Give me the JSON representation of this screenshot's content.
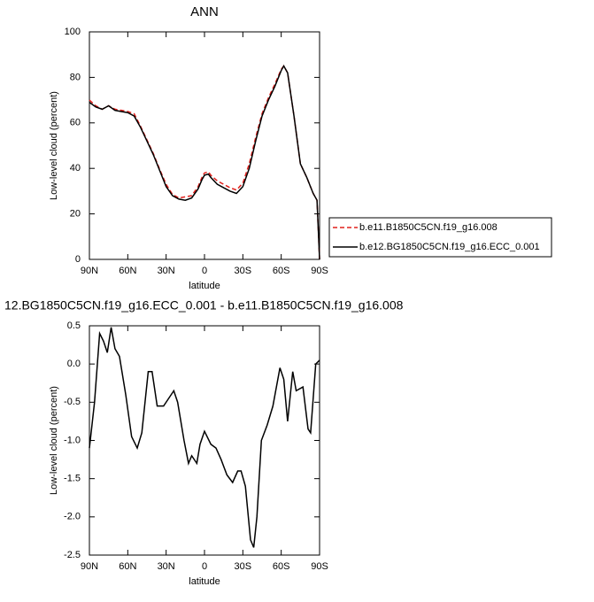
{
  "chart_data": [
    {
      "type": "line",
      "title": "ANN",
      "xlabel": "latitude",
      "ylabel": "Low-level cloud (percent)",
      "x": [
        90,
        85,
        80,
        75,
        70,
        65,
        60,
        55,
        50,
        45,
        40,
        35,
        30,
        25,
        20,
        15,
        10,
        5,
        2,
        0,
        -3,
        -5,
        -10,
        -15,
        -20,
        -25,
        -30,
        -35,
        -40,
        -45,
        -50,
        -55,
        -60,
        -62,
        -65,
        -70,
        -75,
        -80,
        -85,
        -88,
        -90
      ],
      "series": [
        {
          "name": "b.e11.B1850C5CN.f19_g16.008",
          "color": "#e0201c",
          "dashed": true,
          "values": [
            70,
            67.5,
            66,
            67.5,
            66,
            65.5,
            65,
            64,
            58.5,
            52.5,
            46.5,
            39.5,
            33,
            28.5,
            27,
            27.5,
            28,
            32,
            36,
            38,
            38.5,
            37,
            34.5,
            33,
            31.5,
            30.5,
            33.5,
            42,
            53.5,
            64,
            71,
            77,
            83.5,
            85,
            82,
            63,
            42,
            36,
            29,
            26,
            0
          ]
        },
        {
          "name": "b.e12.BG1850C5CN.f19_g16.ECC_0.001",
          "color": "#000000",
          "dashed": false,
          "values": [
            69,
            67,
            66,
            67.5,
            65.5,
            65,
            64.5,
            63,
            58,
            52,
            46,
            39,
            32,
            28,
            26.5,
            26,
            27,
            31,
            35,
            37,
            37.5,
            36,
            33,
            31.5,
            30,
            29,
            32,
            40,
            52,
            63,
            70,
            76,
            83,
            85,
            82,
            63,
            42,
            36,
            29,
            26,
            0
          ]
        }
      ],
      "xlim": [
        90,
        -90
      ],
      "xticks": [
        {
          "value": 90,
          "label": "90N"
        },
        {
          "value": 60,
          "label": "60N"
        },
        {
          "value": 30,
          "label": "30N"
        },
        0,
        {
          "value": -30,
          "label": "30S"
        },
        {
          "value": -60,
          "label": "60S"
        },
        {
          "value": -90,
          "label": "90S"
        }
      ],
      "ylim": [
        0,
        100
      ],
      "yticks": [
        0,
        20,
        40,
        60,
        80,
        100
      ],
      "legend": "right"
    },
    {
      "type": "line",
      "title": "12.BG1850C5CN.f19_g16.ECC_0.001 - b.e11.B1850C5CN.f19_g16.008",
      "xlabel": "latitude",
      "ylabel": "Low-level cloud (percent)",
      "x": [
        90,
        86,
        82,
        79,
        76,
        73,
        70,
        66.5,
        61.6,
        57,
        52.6,
        49,
        44,
        41,
        37,
        32,
        28,
        24,
        21,
        16,
        12.5,
        10,
        6,
        3.5,
        0,
        -5,
        -9,
        -13,
        -17.5,
        -22,
        -26,
        -28.6,
        -32,
        -36,
        -38.5,
        -41,
        -44.5,
        -49,
        -53.5,
        -59,
        -62,
        -65,
        -69,
        -71.7,
        -77,
        -81,
        -83,
        -87,
        -90
      ],
      "series": [
        {
          "color": "#000000",
          "dashed": false,
          "values": [
            -1.1,
            -0.5,
            0.4,
            0.3,
            0.15,
            0.48,
            0.2,
            0.1,
            -0.4,
            -0.95,
            -1.1,
            -0.9,
            -0.1,
            -0.1,
            -0.55,
            -0.55,
            -0.45,
            -0.35,
            -0.5,
            -1.0,
            -1.3,
            -1.2,
            -1.3,
            -1.05,
            -0.88,
            -1.05,
            -1.1,
            -1.25,
            -1.45,
            -1.55,
            -1.4,
            -1.4,
            -1.6,
            -2.3,
            -2.4,
            -2.0,
            -1.0,
            -0.8,
            -0.55,
            -0.05,
            -0.2,
            -0.75,
            -0.1,
            -0.35,
            -0.3,
            -0.85,
            -0.9,
            0.0,
            0.05
          ]
        }
      ],
      "xlim": [
        90,
        -90
      ],
      "xticks": [
        {
          "value": 90,
          "label": "90N"
        },
        {
          "value": 60,
          "label": "60N"
        },
        {
          "value": 30,
          "label": "30N"
        },
        0,
        {
          "value": -30,
          "label": "30S"
        },
        {
          "value": -60,
          "label": "60S"
        },
        {
          "value": -90,
          "label": "90S"
        }
      ],
      "ylim": [
        -2.5,
        0.5
      ],
      "yticks": [
        -2.5,
        {
          "value": -2.0,
          "label": "-2.0"
        },
        -1.5,
        {
          "value": -1.0,
          "label": "-1.0"
        },
        -0.5,
        {
          "value": 0,
          "label": "0.0"
        },
        0.5
      ]
    }
  ]
}
